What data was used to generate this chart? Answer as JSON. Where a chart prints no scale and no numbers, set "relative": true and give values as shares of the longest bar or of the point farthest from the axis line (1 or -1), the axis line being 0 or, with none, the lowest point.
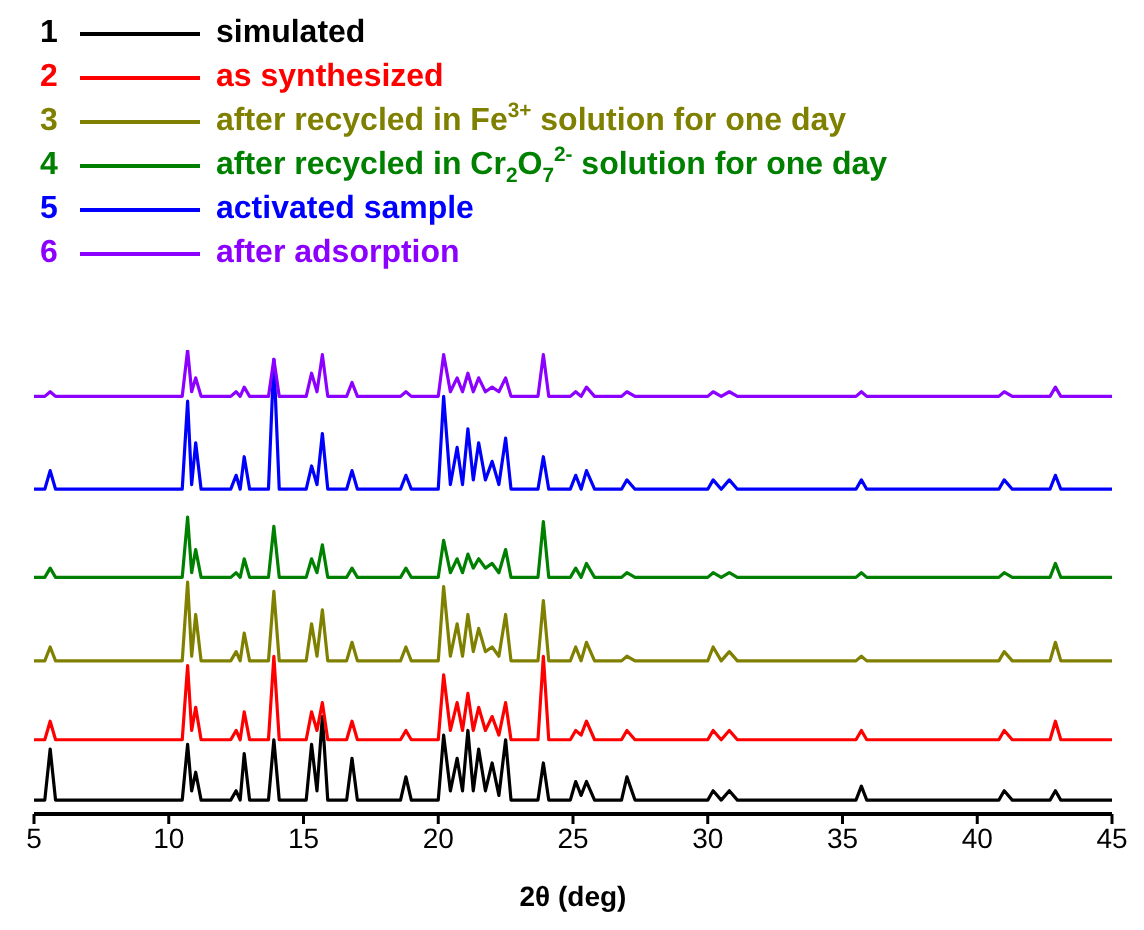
{
  "chart_data": {
    "type": "line",
    "relative": true,
    "xlabel": "2θ (deg)",
    "xlim": [
      5,
      45
    ],
    "xticks": [
      5,
      10,
      15,
      20,
      25,
      30,
      35,
      40,
      45
    ],
    "legend": "top left",
    "annotations": [
      "1",
      "2",
      "3",
      "4",
      "5",
      "6"
    ],
    "grid": false,
    "marker": "none",
    "line_style": "solid",
    "tick_labels": "x",
    "x": [
      5,
      5.4,
      5.6,
      5.8,
      10.5,
      10.7,
      10.85,
      11.0,
      11.2,
      12.3,
      12.5,
      12.65,
      12.8,
      13.0,
      13.7,
      13.9,
      14.1,
      15.1,
      15.3,
      15.5,
      15.7,
      15.9,
      16.6,
      16.8,
      17.0,
      18.6,
      18.8,
      19.0,
      20.0,
      20.2,
      20.45,
      20.7,
      20.9,
      21.1,
      21.3,
      21.5,
      21.75,
      22.0,
      22.25,
      22.5,
      22.7,
      23.7,
      23.9,
      24.1,
      24.9,
      25.1,
      25.3,
      25.5,
      25.8,
      26.8,
      27.0,
      27.3,
      30.0,
      30.2,
      30.5,
      30.8,
      31.1,
      35.5,
      35.7,
      35.9,
      40.8,
      41.0,
      41.3,
      42.7,
      42.9,
      43.1,
      45
    ],
    "series": [
      {
        "name": "simulated",
        "color": "#000000",
        "values": [
          0.03,
          0.03,
          0.14,
          0.03,
          0.03,
          0.15,
          0.05,
          0.09,
          0.03,
          0.03,
          0.05,
          0.03,
          0.13,
          0.03,
          0.03,
          0.16,
          0.03,
          0.03,
          0.15,
          0.05,
          0.21,
          0.03,
          0.03,
          0.12,
          0.03,
          0.03,
          0.08,
          0.03,
          0.03,
          0.17,
          0.05,
          0.12,
          0.05,
          0.18,
          0.05,
          0.14,
          0.05,
          0.11,
          0.04,
          0.16,
          0.03,
          0.03,
          0.11,
          0.03,
          0.03,
          0.07,
          0.04,
          0.07,
          0.03,
          0.03,
          0.08,
          0.03,
          0.03,
          0.05,
          0.03,
          0.05,
          0.03,
          0.03,
          0.06,
          0.03,
          0.03,
          0.05,
          0.03,
          0.03,
          0.05,
          0.03,
          0.03
        ]
      },
      {
        "name": "as synthesized",
        "color": "#ff0000",
        "values": [
          0.16,
          0.16,
          0.2,
          0.16,
          0.16,
          0.32,
          0.18,
          0.23,
          0.16,
          0.16,
          0.18,
          0.16,
          0.22,
          0.16,
          0.16,
          0.34,
          0.16,
          0.16,
          0.22,
          0.18,
          0.24,
          0.16,
          0.16,
          0.2,
          0.16,
          0.16,
          0.18,
          0.16,
          0.16,
          0.3,
          0.18,
          0.24,
          0.18,
          0.26,
          0.18,
          0.23,
          0.18,
          0.21,
          0.17,
          0.24,
          0.16,
          0.16,
          0.34,
          0.16,
          0.16,
          0.18,
          0.17,
          0.2,
          0.16,
          0.16,
          0.18,
          0.16,
          0.16,
          0.18,
          0.16,
          0.18,
          0.16,
          0.16,
          0.18,
          0.16,
          0.16,
          0.18,
          0.16,
          0.16,
          0.2,
          0.16,
          0.16
        ]
      },
      {
        "name": "after recycled in Fe$^{3+}$ solution for one day",
        "color": "#808000",
        "values": [
          0.33,
          0.33,
          0.36,
          0.33,
          0.33,
          0.5,
          0.34,
          0.43,
          0.33,
          0.33,
          0.35,
          0.33,
          0.39,
          0.33,
          0.33,
          0.48,
          0.33,
          0.33,
          0.41,
          0.34,
          0.44,
          0.33,
          0.33,
          0.37,
          0.33,
          0.33,
          0.36,
          0.33,
          0.33,
          0.49,
          0.34,
          0.41,
          0.34,
          0.43,
          0.35,
          0.4,
          0.35,
          0.36,
          0.34,
          0.43,
          0.33,
          0.33,
          0.46,
          0.33,
          0.33,
          0.36,
          0.33,
          0.37,
          0.33,
          0.33,
          0.34,
          0.33,
          0.33,
          0.36,
          0.33,
          0.35,
          0.33,
          0.33,
          0.34,
          0.33,
          0.33,
          0.35,
          0.33,
          0.33,
          0.37,
          0.33,
          0.33
        ]
      },
      {
        "name": "after recycled in Cr$_{2}$O$_{7}$$^{2-}$ solution for one day",
        "color": "#008000",
        "values": [
          0.51,
          0.51,
          0.53,
          0.51,
          0.51,
          0.64,
          0.52,
          0.57,
          0.51,
          0.51,
          0.52,
          0.51,
          0.55,
          0.51,
          0.51,
          0.62,
          0.51,
          0.51,
          0.55,
          0.52,
          0.58,
          0.51,
          0.51,
          0.53,
          0.51,
          0.51,
          0.53,
          0.51,
          0.51,
          0.59,
          0.52,
          0.55,
          0.52,
          0.56,
          0.53,
          0.55,
          0.53,
          0.54,
          0.52,
          0.57,
          0.51,
          0.51,
          0.63,
          0.51,
          0.51,
          0.53,
          0.51,
          0.54,
          0.51,
          0.51,
          0.52,
          0.51,
          0.51,
          0.52,
          0.51,
          0.52,
          0.51,
          0.51,
          0.52,
          0.51,
          0.51,
          0.52,
          0.51,
          0.51,
          0.54,
          0.51,
          0.51
        ]
      },
      {
        "name": "activated sample",
        "color": "#0000ff",
        "values": [
          0.7,
          0.7,
          0.74,
          0.7,
          0.7,
          0.89,
          0.71,
          0.8,
          0.7,
          0.7,
          0.73,
          0.7,
          0.77,
          0.7,
          0.7,
          0.98,
          0.7,
          0.7,
          0.75,
          0.71,
          0.82,
          0.7,
          0.7,
          0.74,
          0.7,
          0.7,
          0.73,
          0.7,
          0.7,
          0.9,
          0.71,
          0.79,
          0.71,
          0.83,
          0.72,
          0.8,
          0.72,
          0.76,
          0.71,
          0.81,
          0.7,
          0.7,
          0.77,
          0.7,
          0.7,
          0.73,
          0.7,
          0.74,
          0.7,
          0.7,
          0.72,
          0.7,
          0.7,
          0.72,
          0.7,
          0.72,
          0.7,
          0.7,
          0.72,
          0.7,
          0.7,
          0.72,
          0.7,
          0.7,
          0.73,
          0.7,
          0.7
        ]
      },
      {
        "name": "after adsorption",
        "color": "#8b00ff",
        "values": [
          0.9,
          0.9,
          0.91,
          0.9,
          0.9,
          1,
          0.91,
          0.94,
          0.9,
          0.9,
          0.91,
          0.9,
          0.92,
          0.9,
          0.9,
          0.98,
          0.9,
          0.9,
          0.95,
          0.91,
          0.99,
          0.9,
          0.9,
          0.93,
          0.9,
          0.9,
          0.91,
          0.9,
          0.9,
          0.99,
          0.91,
          0.94,
          0.91,
          0.95,
          0.91,
          0.94,
          0.91,
          0.92,
          0.91,
          0.94,
          0.9,
          0.9,
          0.99,
          0.9,
          0.9,
          0.91,
          0.9,
          0.92,
          0.9,
          0.9,
          0.91,
          0.9,
          0.9,
          0.91,
          0.9,
          0.91,
          0.9,
          0.9,
          0.91,
          0.9,
          0.9,
          0.91,
          0.9,
          0.9,
          0.92,
          0.9,
          0.9
        ]
      }
    ]
  }
}
